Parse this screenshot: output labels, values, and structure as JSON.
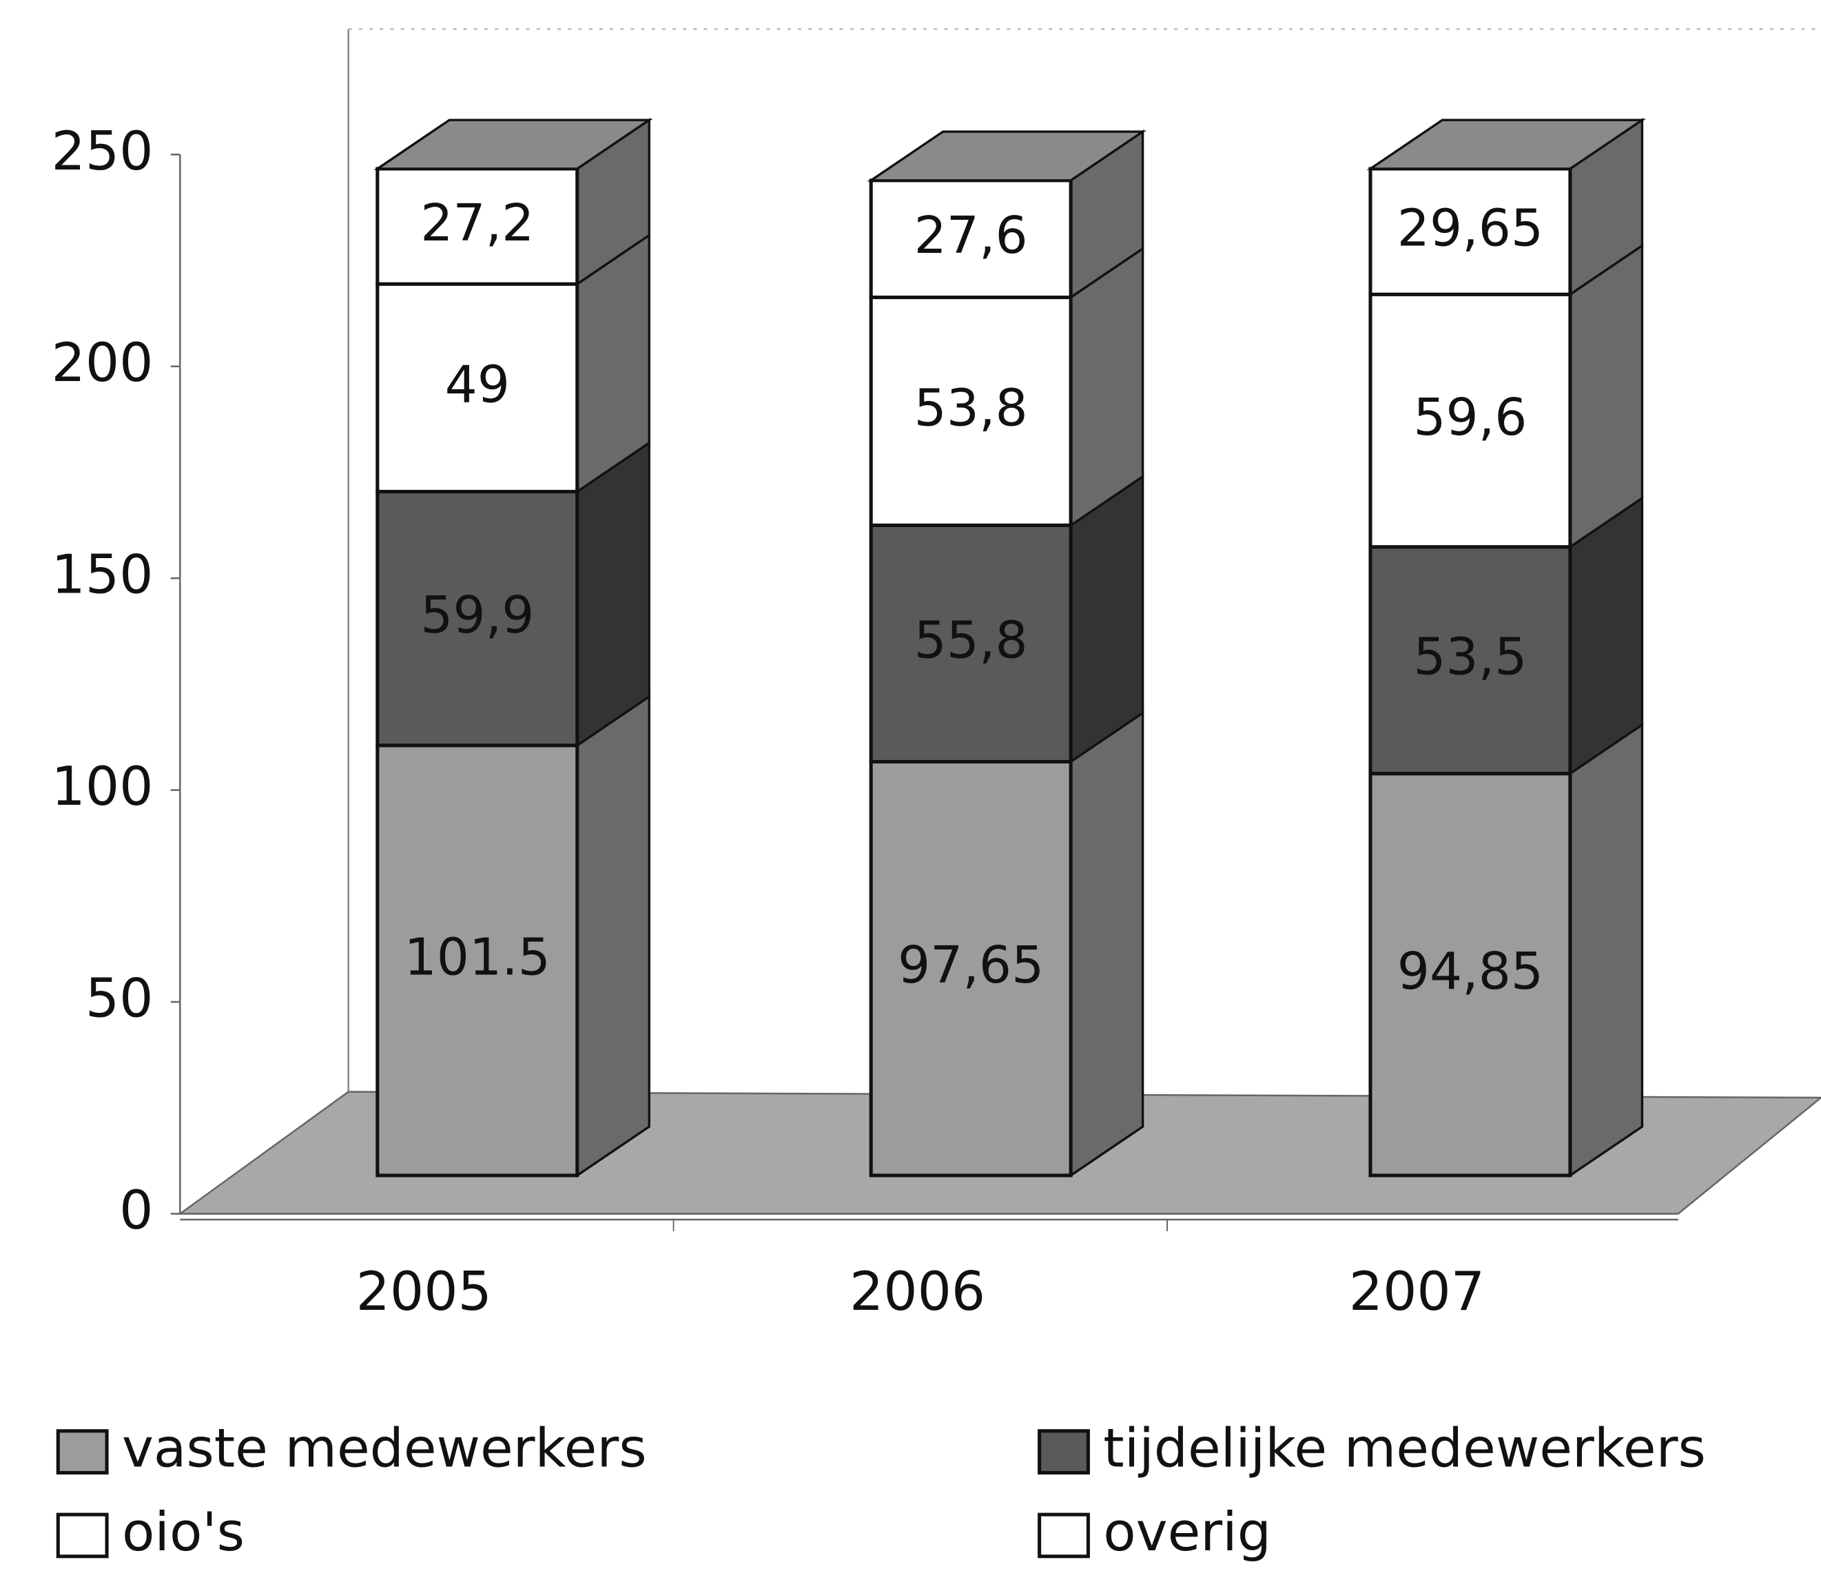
{
  "chart_data": {
    "type": "bar3d_stacked",
    "categories": [
      "2005",
      "2006",
      "2007"
    ],
    "series": [
      {
        "name": "vaste medewerkers",
        "color": "#9c9c9c",
        "values": [
          101.5,
          97.65,
          94.85
        ],
        "value_labels": [
          "101.5",
          "97,65",
          "94,85"
        ]
      },
      {
        "name": "tijdelijke medewerkers",
        "color": "#5a5a5a",
        "values": [
          59.9,
          55.8,
          53.5
        ],
        "value_labels": [
          "59,9",
          "55,8",
          "53,5"
        ]
      },
      {
        "name": "oio's",
        "color": "#ffffff",
        "values": [
          49,
          53.8,
          59.6
        ],
        "value_labels": [
          "49",
          "53,8",
          "59,6"
        ]
      },
      {
        "name": "overig",
        "color": "#ffffff",
        "values": [
          27.2,
          27.6,
          29.65
        ],
        "value_labels": [
          "27,2",
          "27,6",
          "29,65"
        ]
      }
    ],
    "ylim": [
      0,
      250
    ],
    "yticks": [
      0,
      50,
      100,
      150,
      200,
      250
    ]
  }
}
